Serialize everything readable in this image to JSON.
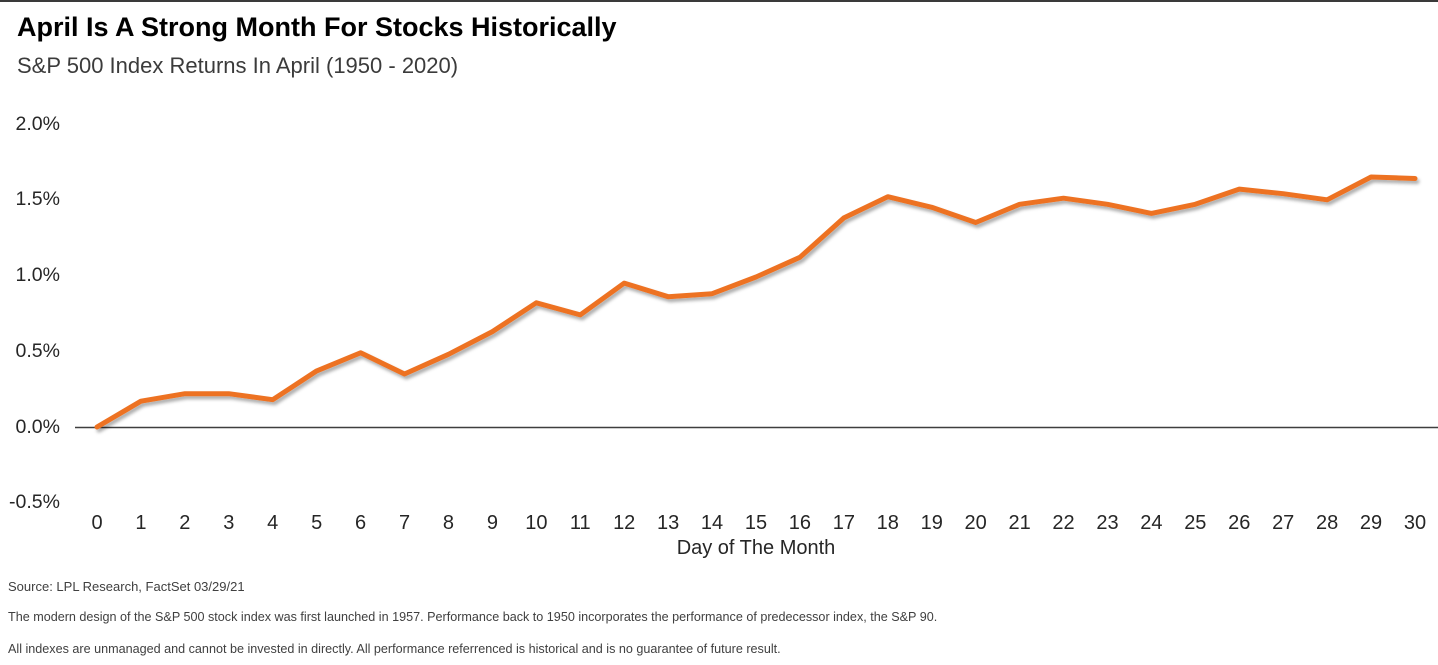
{
  "header": {
    "title": "April Is A Strong Month For Stocks Historically",
    "subtitle": "S&P 500 Index Returns In April (1950 - 2020)"
  },
  "chart_data": {
    "type": "line",
    "title": "April Is A Strong Month For Stocks Historically",
    "subtitle": "S&P 500 Index Returns In April (1950 - 2020)",
    "xlabel": "Day of The Month",
    "ylabel": "",
    "x": [
      0,
      1,
      2,
      3,
      4,
      5,
      6,
      7,
      8,
      9,
      10,
      11,
      12,
      13,
      14,
      15,
      16,
      17,
      18,
      19,
      20,
      21,
      22,
      23,
      24,
      25,
      26,
      27,
      28,
      29,
      30
    ],
    "values": [
      0.0,
      0.17,
      0.22,
      0.22,
      0.18,
      0.37,
      0.49,
      0.35,
      0.48,
      0.63,
      0.82,
      0.74,
      0.95,
      0.86,
      0.88,
      0.99,
      1.12,
      1.38,
      1.52,
      1.45,
      1.35,
      1.47,
      1.51,
      1.47,
      1.41,
      1.47,
      1.57,
      1.54,
      1.5,
      1.65,
      1.64
    ],
    "value_unit": "%",
    "yticks": [
      {
        "label": "2.0%",
        "value": 2.0
      },
      {
        "label": "1.5%",
        "value": 1.5
      },
      {
        "label": "1.0%",
        "value": 1.0
      },
      {
        "label": "0.5%",
        "value": 0.5
      },
      {
        "label": "0.0%",
        "value": 0.0
      },
      {
        "label": "-0.5%",
        "value": -0.5
      }
    ],
    "ylim": [
      -0.5,
      2.0
    ],
    "grid": false,
    "legend": "none",
    "line_color": "#ED7223",
    "axis_color": "#3f3f3f"
  },
  "footer": {
    "source": "Source: LPL Research, FactSet 03/29/21",
    "note1": "The modern design of the S&P 500 stock index was first launched in 1957. Performance back to 1950 incorporates the performance of predecessor index, the S&P 90.",
    "note2": "All indexes are unmanaged and cannot be invested in directly. All performance referrenced is historical and is no guarantee of future result."
  }
}
